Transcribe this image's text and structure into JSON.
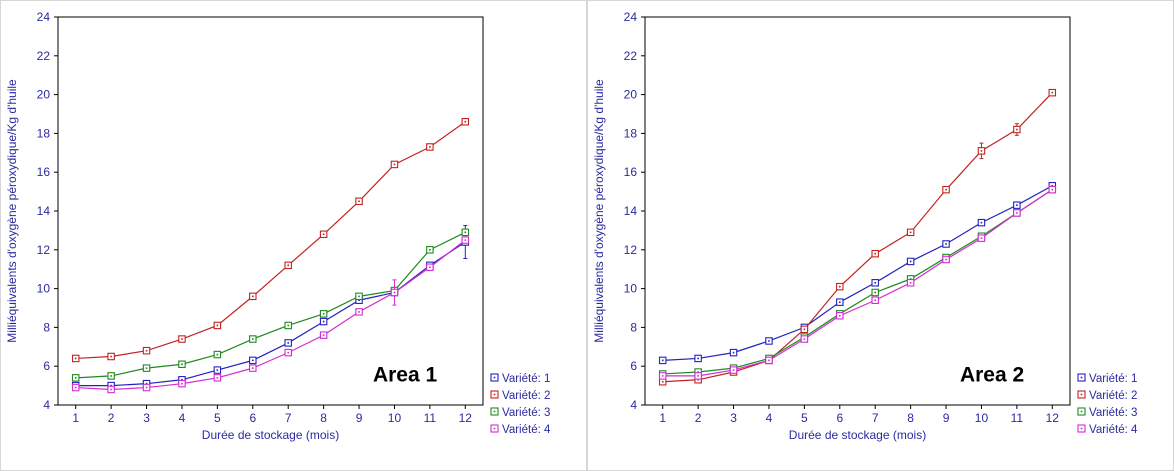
{
  "style": {
    "text_color": "#2a2aa0",
    "axis_color": "#000000",
    "area_label_color": "#000000",
    "background": "#ffffff"
  },
  "chart_data": [
    {
      "type": "line",
      "title": "Area 1",
      "xlabel": "Durée de stockage (mois)",
      "ylabel": "Milliéquivalents d'oxygène  péroxydique/Kg d'huile",
      "x": [
        1,
        2,
        3,
        4,
        5,
        6,
        7,
        8,
        9,
        10,
        11,
        12
      ],
      "ylim": [
        4,
        24
      ],
      "ytick_step": 2,
      "grid": false,
      "legend_position": "right-bottom-outside",
      "default_error": 0.1,
      "series": [
        {
          "name": "Variété: 1",
          "color": "#2222c0",
          "values": [
            5.0,
            5.0,
            5.1,
            5.3,
            5.8,
            6.3,
            7.2,
            8.3,
            9.4,
            9.8,
            11.2,
            12.4
          ],
          "errors": {
            "12": 0.85
          }
        },
        {
          "name": "Variété: 2",
          "color": "#c42222",
          "values": [
            6.4,
            6.5,
            6.8,
            7.4,
            8.1,
            9.6,
            11.2,
            12.8,
            14.5,
            16.4,
            17.3,
            18.6
          ],
          "errors": {}
        },
        {
          "name": "Variété: 3",
          "color": "#1f8a1f",
          "values": [
            5.4,
            5.5,
            5.9,
            6.1,
            6.6,
            7.4,
            8.1,
            8.7,
            9.6,
            9.9,
            12.0,
            12.9
          ],
          "errors": {}
        },
        {
          "name": "Variété: 4",
          "color": "#d32bd3",
          "values": [
            4.9,
            4.8,
            4.9,
            5.1,
            5.4,
            5.9,
            6.7,
            7.6,
            8.8,
            9.8,
            11.1,
            12.5
          ],
          "errors": {
            "10": 0.65
          }
        }
      ]
    },
    {
      "type": "line",
      "title": "Area 2",
      "xlabel": "Durée de stockage (mois)",
      "ylabel": "Milliéquivalents d'oxygène  péroxydique/Kg d'huile",
      "x": [
        1,
        2,
        3,
        4,
        5,
        6,
        7,
        8,
        9,
        10,
        11,
        12
      ],
      "ylim": [
        4,
        24
      ],
      "ytick_step": 2,
      "grid": false,
      "legend_position": "right-bottom-outside",
      "default_error": 0.1,
      "series": [
        {
          "name": "Variété: 1",
          "color": "#2222c0",
          "values": [
            6.3,
            6.4,
            6.7,
            7.3,
            8.0,
            9.3,
            10.3,
            11.4,
            12.3,
            13.4,
            14.3,
            15.3
          ],
          "errors": {}
        },
        {
          "name": "Variété: 2",
          "color": "#c42222",
          "values": [
            5.2,
            5.3,
            5.7,
            6.3,
            7.9,
            10.1,
            11.8,
            12.9,
            15.1,
            17.1,
            18.2,
            20.1
          ],
          "errors": {
            "10": 0.4,
            "11": 0.3
          }
        },
        {
          "name": "Variété: 3",
          "color": "#1f8a1f",
          "values": [
            5.6,
            5.7,
            5.9,
            6.4,
            7.5,
            8.7,
            9.8,
            10.5,
            11.6,
            12.7,
            13.9,
            15.1
          ],
          "errors": {}
        },
        {
          "name": "Variété: 4",
          "color": "#d32bd3",
          "values": [
            5.5,
            5.5,
            5.8,
            6.3,
            7.4,
            8.6,
            9.4,
            10.3,
            11.5,
            12.6,
            13.9,
            15.1
          ],
          "errors": {}
        }
      ]
    }
  ]
}
